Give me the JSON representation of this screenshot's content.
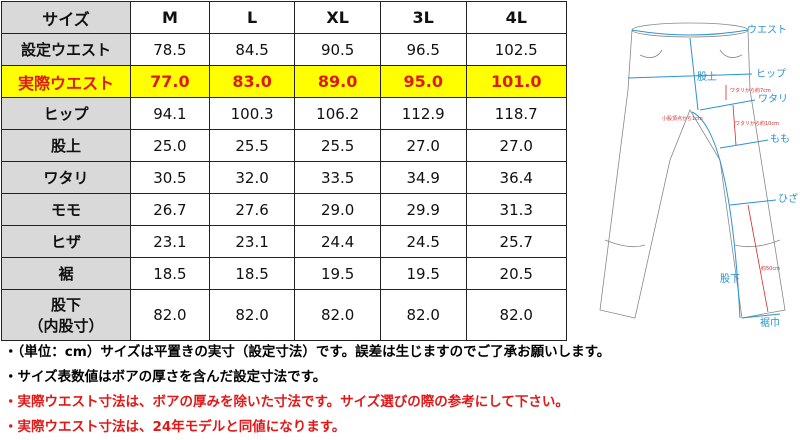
{
  "table": {
    "headers": [
      "サイズ",
      "M",
      "L",
      "XL",
      "3L",
      "4L"
    ],
    "rows": [
      {
        "label": "設定ウエスト",
        "values": [
          "78.5",
          "84.5",
          "90.5",
          "96.5",
          "102.5"
        ],
        "highlight": false
      },
      {
        "label": "実際ウエスト",
        "values": [
          "77.0",
          "83.0",
          "89.0",
          "95.0",
          "101.0"
        ],
        "highlight": true
      },
      {
        "label": "ヒップ",
        "values": [
          "94.1",
          "100.3",
          "106.2",
          "112.9",
          "118.7"
        ],
        "highlight": false
      },
      {
        "label": "股上",
        "values": [
          "25.0",
          "25.5",
          "25.5",
          "27.0",
          "27.0"
        ],
        "highlight": false
      },
      {
        "label": "ワタリ",
        "values": [
          "30.5",
          "32.0",
          "33.5",
          "34.9",
          "36.4"
        ],
        "highlight": false
      },
      {
        "label": "モモ",
        "values": [
          "26.7",
          "27.6",
          "29.0",
          "29.9",
          "31.3"
        ],
        "highlight": false
      },
      {
        "label": "ヒザ",
        "values": [
          "23.1",
          "23.1",
          "24.4",
          "24.5",
          "25.7"
        ],
        "highlight": false
      },
      {
        "label": "裾",
        "values": [
          "18.5",
          "18.5",
          "19.5",
          "19.5",
          "20.5"
        ],
        "highlight": false
      },
      {
        "label": "股下",
        "label2": "（内股寸）",
        "values": [
          "82.0",
          "82.0",
          "82.0",
          "82.0",
          "82.0"
        ],
        "highlight": false
      }
    ],
    "colors": {
      "label_bg": "#d9d9d9",
      "highlight_bg": "#ffff00",
      "highlight_text": "#e01818"
    }
  },
  "diagram": {
    "labels": {
      "waist": "ウエスト",
      "rise": "股上",
      "hip": "ヒップ",
      "thigh_width": "ワタリ",
      "thigh": "もも",
      "knee": "ひざ",
      "inseam": "股下",
      "hem": "裾巾"
    },
    "notes": {
      "n1": "ワタリから約7cm",
      "n2": "ワタリから約10cm",
      "n3": "小股頂点から1cm",
      "n4": "約50cm"
    }
  },
  "notes": [
    {
      "text": "・（単位：cm）サイズは平置きの実寸（設定寸法）です。誤差は生じますのでご了承お願いします。",
      "red": false
    },
    {
      "text": "・サイズ表数値はボアの厚さを含んだ設定寸法です。",
      "red": false
    },
    {
      "text": "・実際ウエスト寸法は、ボアの厚みを除いた寸法です。サイズ選びの際の参考にして下さい。",
      "red": true
    },
    {
      "text": "・実際ウエスト寸法は、24年モデルと同値になります。",
      "red": true
    }
  ]
}
